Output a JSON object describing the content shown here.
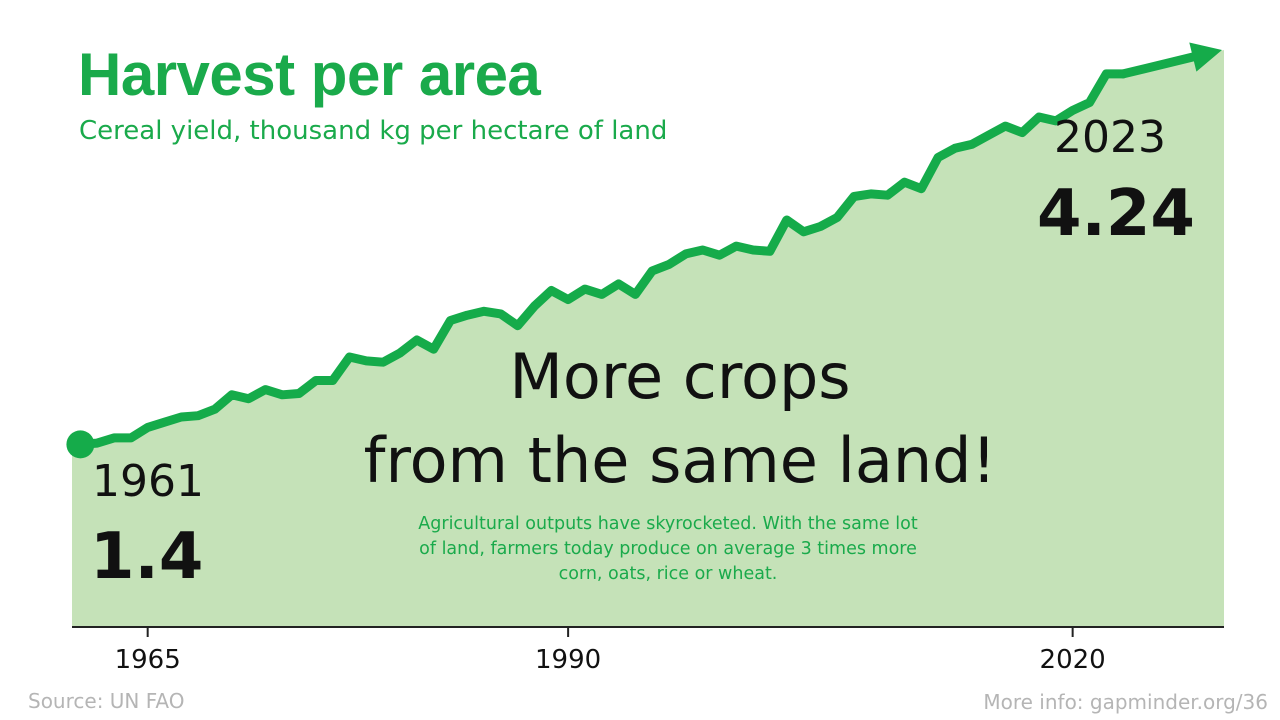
{
  "title": "Harvest per area",
  "subtitle": "Cereal yield, thousand kg per hectare of land",
  "headline": [
    "More crops",
    "from the same land!"
  ],
  "description": "Agricultural outputs have skyrocketed. With the same lot of land, farmers today produce on average 3 times more corn, oats, rice or wheat.",
  "start_label": {
    "year": "1961",
    "value": "1.4"
  },
  "end_label": {
    "year": "2023",
    "value": "4.24"
  },
  "source": "Source: UN FAO",
  "more_info": "More info: gapminder.org/36",
  "colors": {
    "line": "#15ab4a",
    "area": "#c5e2b8",
    "text_green": "#1aaa4b",
    "axis": "#222222"
  },
  "chart_data": {
    "type": "area",
    "title": "Harvest per area",
    "subtitle": "Cereal yield, thousand kg per hectare of land",
    "xlabel": "",
    "ylabel": "",
    "x_ticks": [
      1965,
      1990,
      2020
    ],
    "xlim": [
      1960.5,
      2029
    ],
    "ylim": [
      0,
      4.5
    ],
    "grid": false,
    "legend": "none",
    "series": [
      {
        "name": "",
        "x": [
          1961,
          1962,
          1963,
          1964,
          1965,
          1966,
          1967,
          1968,
          1969,
          1970,
          1971,
          1972,
          1973,
          1974,
          1975,
          1976,
          1977,
          1978,
          1979,
          1980,
          1981,
          1982,
          1983,
          1984,
          1985,
          1986,
          1987,
          1988,
          1989,
          1990,
          1991,
          1992,
          1993,
          1994,
          1995,
          1996,
          1997,
          1998,
          1999,
          2000,
          2001,
          2002,
          2003,
          2004,
          2005,
          2006,
          2007,
          2008,
          2009,
          2010,
          2011,
          2012,
          2013,
          2014,
          2015,
          2016,
          2017,
          2018,
          2019,
          2020,
          2021,
          2022,
          2023
        ],
        "values": [
          1.4,
          1.41,
          1.45,
          1.45,
          1.53,
          1.57,
          1.61,
          1.62,
          1.67,
          1.78,
          1.75,
          1.82,
          1.78,
          1.79,
          1.89,
          1.89,
          2.07,
          2.04,
          2.03,
          2.1,
          2.2,
          2.13,
          2.35,
          2.39,
          2.42,
          2.4,
          2.31,
          2.46,
          2.58,
          2.51,
          2.59,
          2.55,
          2.63,
          2.55,
          2.73,
          2.78,
          2.86,
          2.89,
          2.85,
          2.92,
          2.89,
          2.88,
          3.12,
          3.03,
          3.07,
          3.14,
          3.3,
          3.32,
          3.31,
          3.41,
          3.36,
          3.6,
          3.67,
          3.7,
          3.77,
          3.84,
          3.79,
          3.91,
          3.88,
          3.96,
          4.02,
          4.24,
          4.24
        ]
      }
    ],
    "annotations": [
      "1961",
      "1.4",
      "2023",
      "4.24"
    ]
  }
}
